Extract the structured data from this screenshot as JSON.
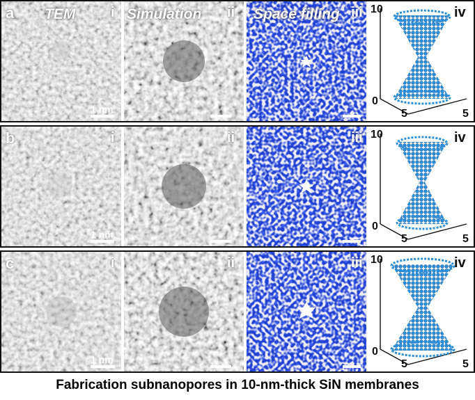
{
  "column_titles": {
    "tem": "TEM",
    "simulation": "Simulation",
    "space_filling": "Space filling"
  },
  "rows": [
    {
      "label": "a",
      "roman": [
        "i",
        "ii",
        "iii",
        "iv"
      ],
      "scale_label": "1 nm",
      "axis_ticks": {
        "z_top": "10",
        "origin": "0",
        "x_tick": "5",
        "y_tick": "5"
      }
    },
    {
      "label": "b",
      "roman": [
        "i",
        "ii",
        "iii",
        "iv"
      ],
      "scale_label": "1 nm",
      "axis_ticks": {
        "z_top": "10",
        "origin": "0",
        "x_tick": "5",
        "y_tick": "5"
      }
    },
    {
      "label": "c",
      "roman": [
        "i",
        "ii",
        "iii",
        "iv"
      ],
      "scale_label": "1 nm",
      "axis_ticks": {
        "z_top": "10",
        "origin": "0",
        "x_tick": "5",
        "y_tick": "5"
      }
    }
  ],
  "caption": "Fabrication subnanopores in 10-nm-thick SiN membranes",
  "colors": {
    "tem_gray": "#8a8a8a",
    "sim_gray": "#6e6e6e",
    "space_fill_blue": "#1f3fd0",
    "atom_white": "#d8d8e8",
    "model_blue": "#2a8fd8",
    "border": "#111111"
  }
}
